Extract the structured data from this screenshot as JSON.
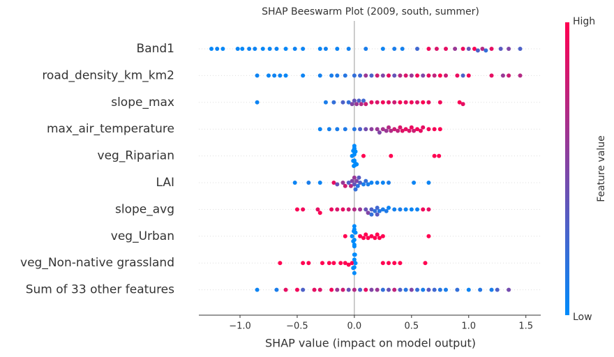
{
  "chart_data": {
    "type": "beeswarm",
    "title": "SHAP Beeswarm Plot (2009, south, summer)",
    "xlabel": "SHAP value (impact on model output)",
    "categories": [
      "Band1",
      "road_density_km_km2",
      "slope_max",
      "max_air_temperature",
      "veg_Riparian",
      "LAI",
      "slope_avg",
      "veg_Urban",
      "veg_Non-native grassland",
      "Sum of 33 other features"
    ],
    "values": [
      [
        -1.25,
        -1.2,
        -1.15,
        -1.02,
        -0.98,
        -0.92,
        -0.87,
        -0.8,
        -0.74,
        -0.68,
        -0.6,
        -0.52,
        -0.45,
        -0.3,
        -0.25,
        -0.15,
        -0.05,
        0.1,
        0.25,
        0.35,
        0.42,
        0.55,
        0.65,
        0.72,
        0.8,
        0.88,
        0.95,
        1.0,
        1.05,
        1.08,
        1.12,
        1.15,
        1.2,
        1.28,
        1.35,
        1.45
      ],
      [
        -0.85,
        -0.75,
        -0.7,
        -0.65,
        -0.6,
        -0.45,
        -0.3,
        -0.2,
        -0.15,
        -0.08,
        0,
        0.05,
        0.1,
        0.15,
        0.2,
        0.25,
        0.3,
        0.35,
        0.4,
        0.45,
        0.5,
        0.55,
        0.6,
        0.65,
        0.7,
        0.75,
        0.8,
        0.9,
        0.95,
        1.0,
        1.2,
        1.3,
        1.35,
        1.45
      ],
      [
        -0.85,
        -0.25,
        -0.18,
        -0.1,
        -0.05,
        -0.02,
        0,
        0.02,
        0.04,
        0.06,
        0.08,
        0.1,
        0.15,
        0.2,
        0.25,
        0.3,
        0.35,
        0.4,
        0.45,
        0.5,
        0.55,
        0.6,
        0.65,
        0.75,
        0.92,
        0.95
      ],
      [
        -0.3,
        -0.22,
        -0.15,
        -0.08,
        0,
        0.05,
        0.1,
        0.15,
        0.2,
        0.25,
        0.3,
        0.35,
        0.4,
        0.45,
        0.5,
        0.55,
        0.6,
        0.65,
        0.7,
        0.75,
        0.22,
        0.28,
        0.38,
        0.48,
        0.58,
        0.32,
        0.42,
        0.52
      ],
      [
        -0.02,
        -0.01,
        0,
        0,
        0,
        0.01,
        0.02,
        0,
        -0.01,
        0.01,
        0,
        0,
        0,
        0.005,
        -0.005,
        0.08,
        0.32,
        0.7,
        0.74
      ],
      [
        -0.52,
        -0.4,
        -0.3,
        -0.18,
        -0.15,
        -0.1,
        -0.05,
        -0.03,
        0,
        0.01,
        0.02,
        0.03,
        0.05,
        0.08,
        0.1,
        0.12,
        0.15,
        0.2,
        0.25,
        0.3,
        0.52,
        0.65,
        -0.08,
        0,
        0.04,
        -0.02
      ],
      [
        -0.5,
        -0.45,
        -0.32,
        -0.3,
        -0.2,
        -0.15,
        -0.1,
        -0.05,
        0,
        0.05,
        0.1,
        0.12,
        0.15,
        0.18,
        0.2,
        0.22,
        0.25,
        0.28,
        0.3,
        0.35,
        0.4,
        0.45,
        0.5,
        0.55,
        0.6,
        0.65,
        0.2,
        0.15
      ],
      [
        -0.08,
        -0.02,
        -0.01,
        0,
        0,
        0,
        0.01,
        0,
        -0.005,
        0.005,
        0,
        0.05,
        0.08,
        0.1,
        0.12,
        0.15,
        0.18,
        0.2,
        0.22,
        0.25,
        0.65
      ],
      [
        -0.65,
        -0.45,
        -0.4,
        -0.28,
        -0.22,
        -0.18,
        -0.12,
        -0.08,
        -0.05,
        -0.02,
        0,
        0,
        0,
        0.01,
        -0.01,
        0,
        0.005,
        0.25,
        0.3,
        0.35,
        0.4,
        0.62
      ],
      [
        -0.85,
        -0.68,
        -0.6,
        -0.5,
        -0.45,
        -0.35,
        -0.3,
        -0.2,
        -0.15,
        -0.1,
        -0.05,
        0,
        0.05,
        0.1,
        0.15,
        0.2,
        0.25,
        0.3,
        0.35,
        0.4,
        0.45,
        0.5,
        0.55,
        0.6,
        0.65,
        0.7,
        0.75,
        0.8,
        0.9,
        1.0,
        1.1,
        1.2,
        1.25,
        1.35
      ]
    ],
    "feature_values": [
      [
        0.02,
        0.05,
        0.03,
        0.04,
        0.02,
        0.06,
        0.05,
        0.03,
        0.04,
        0.05,
        0.03,
        0.06,
        0.05,
        0.04,
        0.07,
        0.05,
        0.08,
        0.1,
        0.06,
        0.1,
        0.08,
        0.25,
        0.95,
        0.85,
        0.9,
        0.6,
        0.92,
        0.4,
        0.98,
        0.3,
        0.7,
        0.2,
        0.9,
        0.35,
        0.5,
        0.3
      ],
      [
        0.05,
        0.04,
        0.06,
        0.05,
        0.03,
        0.05,
        0.08,
        0.1,
        0.12,
        0.15,
        0.2,
        0.25,
        0.6,
        0.3,
        0.8,
        0.5,
        0.9,
        0.4,
        0.7,
        0.85,
        0.6,
        0.95,
        0.5,
        0.9,
        0.75,
        0.98,
        0.8,
        0.92,
        0.3,
        0.95,
        0.9,
        0.6,
        0.8,
        0.7
      ],
      [
        0.05,
        0.1,
        0.2,
        0.3,
        0.2,
        0.5,
        0.4,
        0.6,
        0.3,
        0.7,
        0.25,
        0.8,
        0.9,
        0.85,
        0.95,
        0.9,
        0.8,
        0.98,
        0.9,
        0.95,
        0.85,
        0.99,
        0.9,
        0.95,
        0.98,
        0.9
      ],
      [
        0.05,
        0.08,
        0.1,
        0.12,
        0.15,
        0.3,
        0.45,
        0.55,
        0.6,
        0.65,
        0.7,
        0.8,
        0.85,
        0.9,
        0.92,
        0.95,
        0.9,
        0.95,
        0.97,
        0.99,
        0.5,
        0.6,
        0.75,
        0.85,
        0.9,
        0.7,
        0.88,
        0.8
      ],
      [
        0,
        0,
        0,
        0,
        0,
        0,
        0,
        0,
        0,
        0,
        0,
        0,
        0,
        0,
        0,
        1,
        1,
        1,
        1
      ],
      [
        0.05,
        0.1,
        0.05,
        0.9,
        0.4,
        0.6,
        0.3,
        0.7,
        0.4,
        0.2,
        0.5,
        0.15,
        0.3,
        0.1,
        0.2,
        0.1,
        0.05,
        0.08,
        0.05,
        0.1,
        0.05,
        0.05,
        0.8,
        0.6,
        0.35,
        0.5
      ],
      [
        0.98,
        0.95,
        0.9,
        0.99,
        0.92,
        0.85,
        0.9,
        0.8,
        0.7,
        0.6,
        0.4,
        0.5,
        0.3,
        0.2,
        0.25,
        0.15,
        0.1,
        0.12,
        0.05,
        0.08,
        0.1,
        0.05,
        0.04,
        0.06,
        0.95,
        0.9,
        0.35,
        0.2
      ],
      [
        1,
        0,
        0,
        0,
        0,
        0,
        0,
        0,
        0,
        0,
        0,
        1,
        1,
        1,
        1,
        1,
        1,
        1,
        1,
        1,
        1
      ],
      [
        1,
        1,
        1,
        1,
        1,
        1,
        1,
        1,
        1,
        1,
        0,
        0,
        0,
        0,
        0,
        0,
        0,
        1,
        1,
        1,
        1,
        1
      ],
      [
        0.05,
        0.1,
        0.9,
        0.95,
        0.3,
        0.9,
        0.85,
        0.95,
        0.6,
        0.8,
        0.4,
        0.7,
        0.3,
        0.9,
        0.5,
        0.6,
        0.2,
        0.4,
        0.75,
        0.3,
        0.15,
        0.5,
        0.2,
        0.1,
        0.35,
        0.25,
        0.15,
        0.1,
        0.2,
        0.05,
        0.15,
        0.1,
        0.3,
        0.45
      ]
    ],
    "xlim": [
      -1.36,
      1.63
    ],
    "xticks": [
      {
        "value": -1.0,
        "label": "−1.0"
      },
      {
        "value": -0.5,
        "label": "−0.5"
      },
      {
        "value": 0,
        "label": "0.0"
      },
      0.5,
      {
        "value": 1.0,
        "label": "1.0"
      },
      1.5
    ],
    "colorbar": {
      "label": "Feature value",
      "high_label": "High",
      "low_label": "Low",
      "colors": [
        "#008bfb",
        "#ff0051"
      ]
    }
  }
}
